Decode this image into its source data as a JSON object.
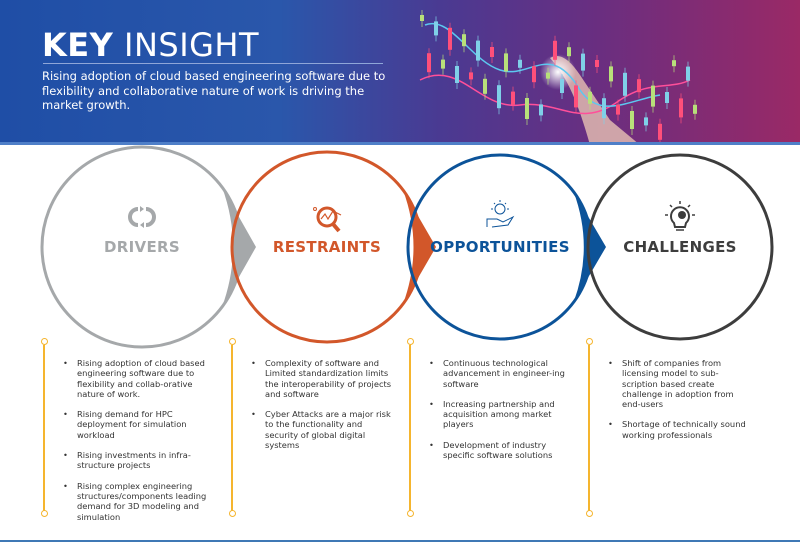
{
  "header": {
    "title_bold": "KEY",
    "title_light": "INSIGHT",
    "subtitle": "Rising adoption of cloud based engineering software due to flexibility and collaborative nature of work is driving the market growth."
  },
  "sections": [
    {
      "label": "DRIVERS",
      "color": "#a5a8aa",
      "icon": "cycle-icon",
      "bullets": [
        "Rising adoption of cloud based engineering software due to flexibility and collab-orative nature of work.",
        "Rising demand for HPC deployment for simulation workload",
        "Rising investments in infra-structure projects",
        "Rising complex engineering structures/components leading demand for 3D modeling and simulation"
      ]
    },
    {
      "label": "RESTRAINTS",
      "color": "#d2572a",
      "icon": "magnifier-chart-icon",
      "bullets": [
        "Complexity of software and Limited standardization limits the interoperability of projects and software",
        "Cyber Attacks are a major risk to the functionality and security of global digital systems"
      ]
    },
    {
      "label": "OPPORTUNITIES",
      "color": "#0c5399",
      "icon": "hand-idea-icon",
      "bullets": [
        "Continuous technological advancement in engineer-ing software",
        "Increasing partnership and acquisition among market players",
        "Development of industry specific software solutions"
      ]
    },
    {
      "label": "CHALLENGES",
      "color": "#3d3d3d",
      "icon": "bulb-gear-icon",
      "bullets": [
        "Shift of companies from licensing model to sub-scription based create challenge in adoption from end-users",
        "Shortage of technically sound working professionals"
      ]
    }
  ],
  "colors": {
    "timeline": "#f5b52e",
    "bottom_rule": "#3f78b5"
  }
}
